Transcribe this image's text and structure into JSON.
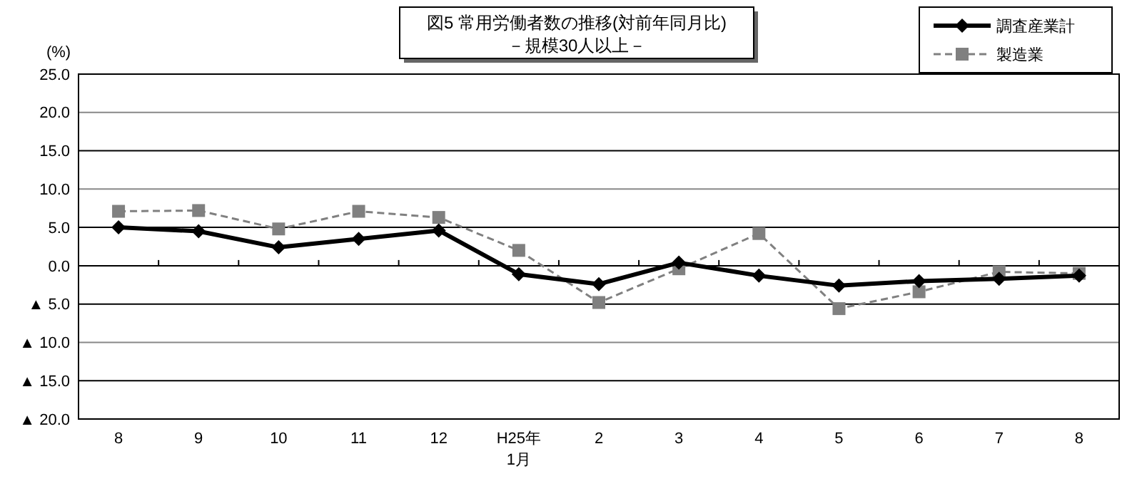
{
  "chart_data": {
    "type": "line",
    "title": "図5  常用労働者数の推移(対前年同月比)",
    "subtitle": "－規模30人以上－",
    "ylabel": "(%)",
    "categories": [
      "8",
      "9",
      "10",
      "11",
      "12",
      "H25年\n1月",
      "2",
      "3",
      "4",
      "5",
      "6",
      "7",
      "8"
    ],
    "series": [
      {
        "name": "調査産業計",
        "color": "#000000",
        "marker": "diamond",
        "line_style": "solid",
        "values": [
          5.0,
          4.5,
          2.4,
          3.5,
          4.6,
          -1.1,
          -2.4,
          0.4,
          -1.3,
          -2.6,
          -2.0,
          -1.7,
          -1.3
        ]
      },
      {
        "name": "製造業",
        "color": "#808080",
        "marker": "square",
        "line_style": "dashed",
        "values": [
          7.1,
          7.2,
          4.8,
          7.1,
          6.3,
          2.0,
          -4.8,
          -0.4,
          4.2,
          -5.6,
          -3.4,
          -0.8,
          -1.0
        ]
      }
    ],
    "ylim": [
      -20,
      25
    ],
    "yticks": [
      {
        "value": -20,
        "label": "▲ 20.0"
      },
      {
        "value": -15,
        "label": "▲ 15.0"
      },
      {
        "value": -10,
        "label": "▲ 10.0"
      },
      {
        "value": -5,
        "label": "▲ 5.0"
      },
      {
        "value": 0,
        "label": "0.0"
      },
      {
        "value": 5,
        "label": "5.0"
      },
      {
        "value": 10,
        "label": "10.0"
      },
      {
        "value": 15,
        "label": "15.0"
      },
      {
        "value": 20,
        "label": "20.0"
      },
      {
        "value": 25,
        "label": "25.0"
      }
    ],
    "grid": "y",
    "legend": "top right"
  }
}
